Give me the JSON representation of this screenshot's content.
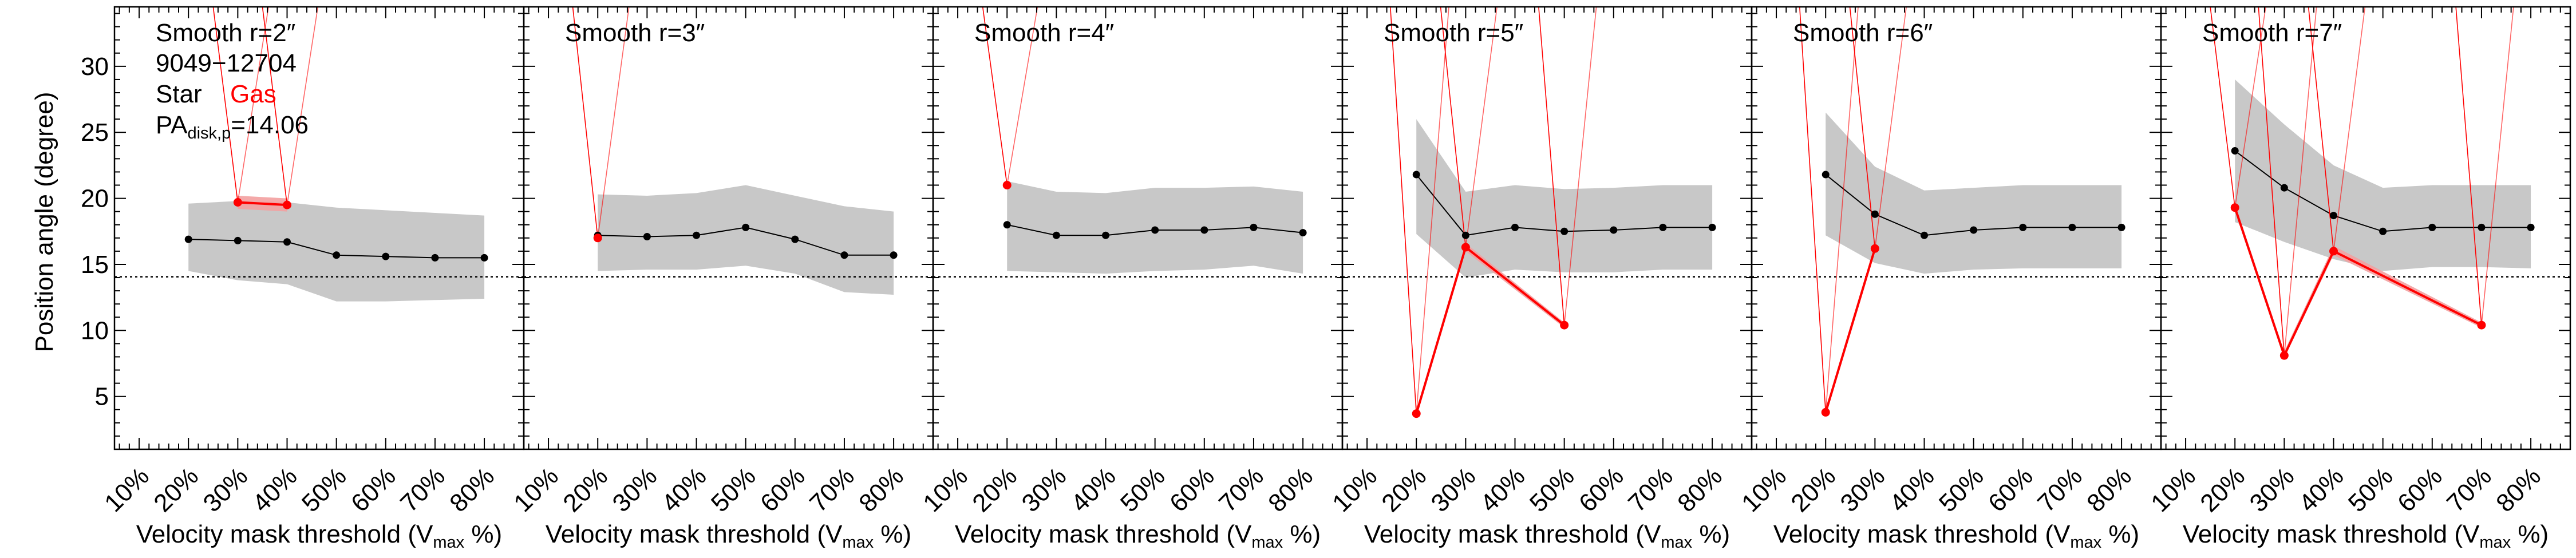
{
  "figure": {
    "ylabel": "Position angle (degree)",
    "xlabel_prefix": "Velocity mask threshold (V",
    "xlabel_sub": "max",
    "xlabel_suffix": " %)",
    "info_lines": {
      "galaxy": "9049−12704",
      "star_label": "Star",
      "gas_label": "Gas",
      "pa_prefix": "PA",
      "pa_sub": "disk,p",
      "pa_value": "=14.06"
    },
    "colors": {
      "star": "#000000",
      "gas": "#ff0000",
      "band": "#c8c8c8"
    }
  },
  "chart_data": [
    {
      "type": "line",
      "title": "Smooth r=2″",
      "categories": [
        "10%",
        "20%",
        "30%",
        "40%",
        "50%",
        "60%",
        "70%",
        "80%"
      ],
      "x": [
        10,
        20,
        30,
        40,
        50,
        60,
        70,
        80
      ],
      "xlim": [
        5,
        88
      ],
      "ylim": [
        1,
        34.5
      ],
      "reference_line": 14.06,
      "series": [
        {
          "name": "Star",
          "x": [
            20,
            30,
            40,
            50,
            60,
            70,
            80
          ],
          "values": [
            16.9,
            16.8,
            16.7,
            15.7,
            15.6,
            15.5,
            15.5
          ],
          "band_low": [
            14.5,
            13.8,
            13.5,
            12.2,
            12.2,
            12.3,
            12.4
          ],
          "band_high": [
            19.6,
            19.8,
            19.7,
            19.3,
            19.1,
            18.9,
            18.7
          ]
        },
        {
          "name": "Gas",
          "x": [
            30,
            40
          ],
          "values": [
            19.7,
            19.5
          ],
          "band_low": [
            19.2,
            19.0
          ],
          "band_high": [
            20.2,
            20.0
          ]
        }
      ]
    },
    {
      "type": "line",
      "title": "Smooth r=3″",
      "categories": [
        "10%",
        "20%",
        "30%",
        "40%",
        "50%",
        "60%",
        "70%",
        "80%"
      ],
      "x": [
        10,
        20,
        30,
        40,
        50,
        60,
        70,
        80
      ],
      "xlim": [
        5,
        88
      ],
      "ylim": [
        1,
        34.5
      ],
      "reference_line": 14.06,
      "series": [
        {
          "name": "Star",
          "x": [
            20,
            30,
            40,
            50,
            60,
            70,
            80
          ],
          "values": [
            17.2,
            17.1,
            17.2,
            17.8,
            16.9,
            15.7,
            15.7
          ],
          "band_low": [
            14.5,
            14.6,
            14.6,
            14.9,
            14.3,
            12.9,
            12.7
          ],
          "band_high": [
            20.3,
            20.2,
            20.4,
            21.0,
            20.2,
            19.4,
            19.0
          ]
        },
        {
          "name": "Gas",
          "x": [
            20
          ],
          "values": [
            17.0
          ],
          "band_low": [
            16.7
          ],
          "band_high": [
            17.4
          ]
        }
      ]
    },
    {
      "type": "line",
      "title": "Smooth r=4″",
      "categories": [
        "10%",
        "20%",
        "30%",
        "40%",
        "50%",
        "60%",
        "70%",
        "80%"
      ],
      "x": [
        10,
        20,
        30,
        40,
        50,
        60,
        70,
        80
      ],
      "xlim": [
        5,
        88
      ],
      "ylim": [
        1,
        34.5
      ],
      "reference_line": 14.06,
      "series": [
        {
          "name": "Star",
          "x": [
            20,
            30,
            40,
            50,
            60,
            70,
            80
          ],
          "values": [
            18.0,
            17.2,
            17.2,
            17.6,
            17.6,
            17.8,
            17.4
          ],
          "band_low": [
            14.5,
            14.4,
            14.3,
            14.5,
            14.6,
            14.9,
            14.3
          ],
          "band_high": [
            21.3,
            20.5,
            20.4,
            20.8,
            20.8,
            20.9,
            20.5
          ]
        },
        {
          "name": "Gas",
          "x": [
            20
          ],
          "values": [
            21.0
          ],
          "band_low": [
            20.8
          ],
          "band_high": [
            21.2
          ]
        }
      ]
    },
    {
      "type": "line",
      "title": "Smooth r=5″",
      "categories": [
        "10%",
        "20%",
        "30%",
        "40%",
        "50%",
        "60%",
        "70%",
        "80%"
      ],
      "x": [
        10,
        20,
        30,
        40,
        50,
        60,
        70,
        80
      ],
      "xlim": [
        5,
        88
      ],
      "ylim": [
        1,
        34.5
      ],
      "reference_line": 14.06,
      "series": [
        {
          "name": "Star",
          "x": [
            20,
            30,
            40,
            50,
            60,
            70,
            80
          ],
          "values": [
            21.8,
            17.2,
            17.8,
            17.5,
            17.6,
            17.8,
            17.8
          ],
          "band_low": [
            17.3,
            14.0,
            14.6,
            14.4,
            14.4,
            14.6,
            14.6
          ],
          "band_high": [
            26.0,
            20.5,
            21.0,
            20.7,
            20.8,
            21.0,
            21.0
          ]
        },
        {
          "name": "Gas",
          "x": [
            20,
            30,
            50
          ],
          "values": [
            3.7,
            16.3,
            10.4
          ],
          "band_low": [
            3.4,
            16.0,
            10.2
          ],
          "band_high": [
            4.0,
            16.6,
            10.6
          ]
        }
      ]
    },
    {
      "type": "line",
      "title": "Smooth r=6″",
      "categories": [
        "10%",
        "20%",
        "30%",
        "40%",
        "50%",
        "60%",
        "70%",
        "80%"
      ],
      "x": [
        10,
        20,
        30,
        40,
        50,
        60,
        70,
        80
      ],
      "xlim": [
        5,
        88
      ],
      "ylim": [
        1,
        34.5
      ],
      "reference_line": 14.06,
      "series": [
        {
          "name": "Star",
          "x": [
            20,
            30,
            40,
            50,
            60,
            70,
            80
          ],
          "values": [
            21.8,
            18.8,
            17.2,
            17.6,
            17.8,
            17.8,
            17.8
          ],
          "band_low": [
            17.2,
            15.1,
            14.3,
            14.6,
            14.7,
            14.7,
            14.7
          ],
          "band_high": [
            26.5,
            22.4,
            20.6,
            20.8,
            21.0,
            21.0,
            21.0
          ]
        },
        {
          "name": "Gas",
          "x": [
            20,
            30
          ],
          "values": [
            3.8,
            16.2
          ],
          "band_low": [
            3.5,
            15.9
          ],
          "band_high": [
            4.1,
            16.5
          ]
        }
      ]
    },
    {
      "type": "line",
      "title": "Smooth r=7″",
      "categories": [
        "10%",
        "20%",
        "30%",
        "40%",
        "50%",
        "60%",
        "70%",
        "80%"
      ],
      "x": [
        10,
        20,
        30,
        40,
        50,
        60,
        70,
        80
      ],
      "xlim": [
        5,
        88
      ],
      "ylim": [
        1,
        34.5
      ],
      "reference_line": 14.06,
      "series": [
        {
          "name": "Star",
          "x": [
            20,
            30,
            40,
            50,
            60,
            70,
            80
          ],
          "values": [
            23.6,
            20.8,
            18.7,
            17.5,
            17.8,
            17.8,
            17.8
          ],
          "band_low": [
            18.2,
            16.7,
            15.4,
            14.5,
            14.8,
            14.8,
            14.7
          ],
          "band_high": [
            29.0,
            25.6,
            22.5,
            20.8,
            21.0,
            21.0,
            21.0
          ]
        },
        {
          "name": "Gas",
          "x": [
            20,
            30,
            40,
            70
          ],
          "values": [
            19.3,
            8.1,
            16.0,
            10.4
          ],
          "band_low": [
            19.0,
            7.9,
            15.7,
            10.2
          ],
          "band_high": [
            19.6,
            8.4,
            16.4,
            10.6
          ]
        }
      ]
    }
  ]
}
